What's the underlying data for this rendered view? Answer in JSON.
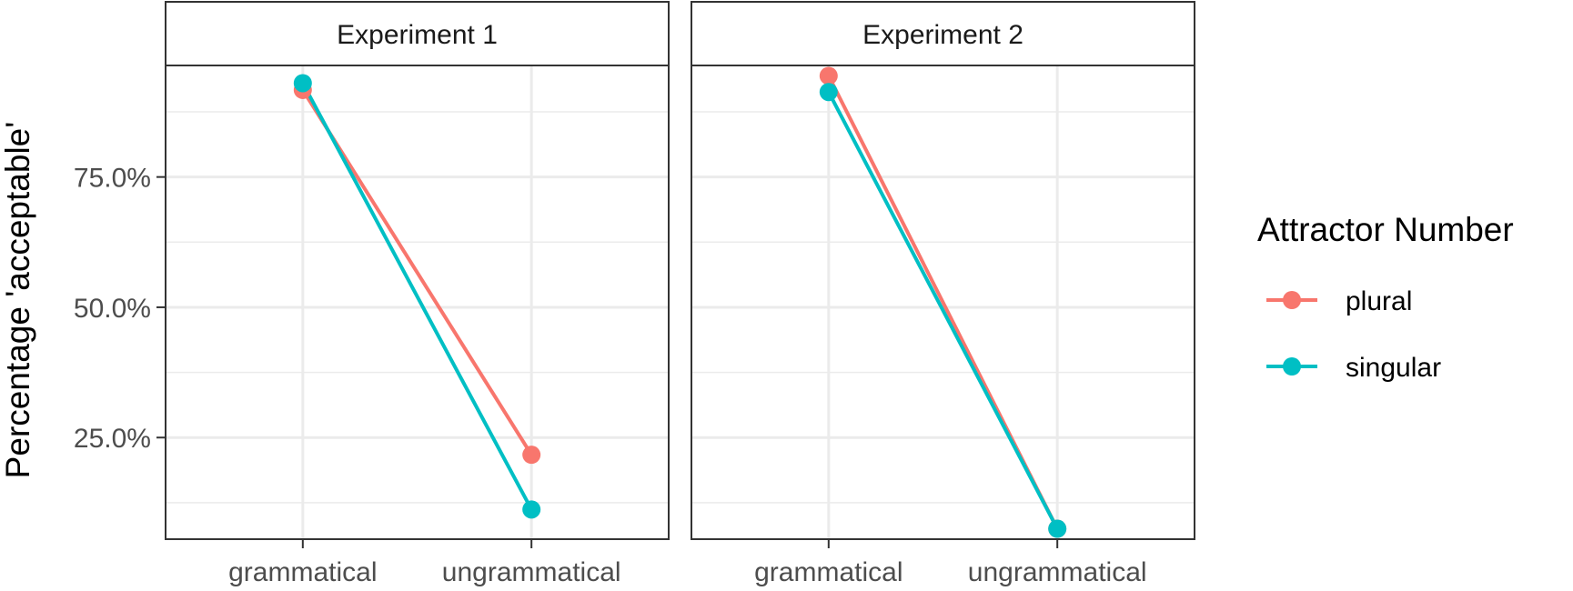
{
  "chart_data": {
    "type": "line",
    "ylabel": "Percentage 'acceptable'",
    "xlabel": "",
    "categories": [
      "grammatical",
      "ungrammatical"
    ],
    "y_ticks": [
      0.25,
      0.5,
      0.75
    ],
    "y_tick_labels": [
      "25.0%",
      "50.0%",
      "75.0%"
    ],
    "ylim": [
      0.055,
      0.964
    ],
    "grid": true,
    "legend": {
      "title": "Attractor Number",
      "position": "right",
      "entries": [
        {
          "name": "plural",
          "color": "#F8766D"
        },
        {
          "name": "singular",
          "color": "#00BFC4"
        }
      ]
    },
    "panels": [
      {
        "title": "Experiment 1",
        "series": [
          {
            "name": "plural",
            "color": "#F8766D",
            "values": [
              0.917,
              0.217
            ]
          },
          {
            "name": "singular",
            "color": "#00BFC4",
            "values": [
              0.93,
              0.112
            ]
          }
        ]
      },
      {
        "title": "Experiment 2",
        "series": [
          {
            "name": "plural",
            "color": "#F8766D",
            "values": [
              0.944,
              0.075
            ]
          },
          {
            "name": "singular",
            "color": "#00BFC4",
            "values": [
              0.913,
              0.075
            ]
          }
        ]
      }
    ]
  }
}
